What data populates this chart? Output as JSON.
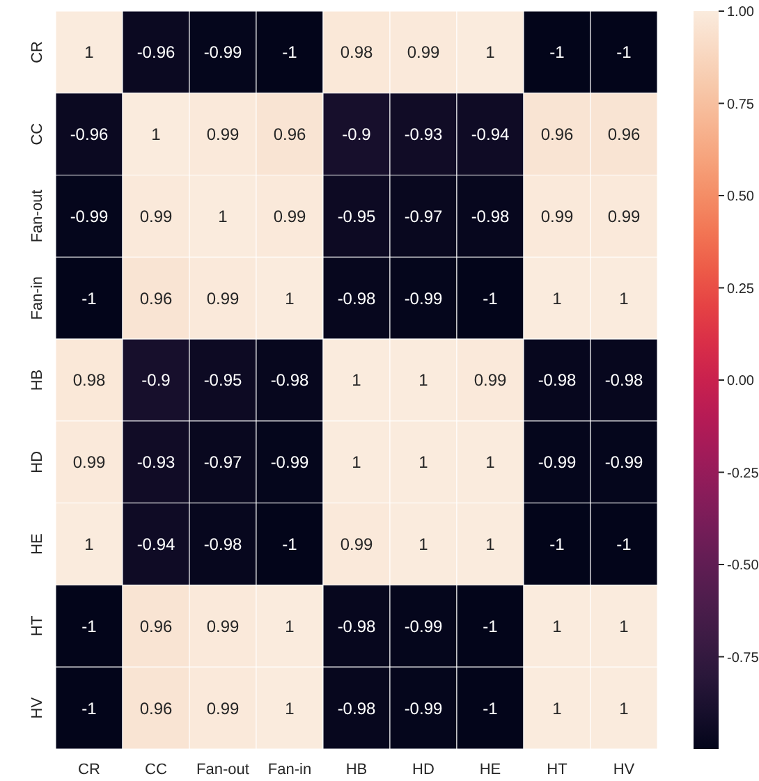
{
  "chart_data": {
    "type": "heatmap",
    "categories": [
      "CR",
      "CC",
      "Fan-out",
      "Fan-in",
      "HB",
      "HD",
      "HE",
      "HT",
      "HV"
    ],
    "y_categories": [
      "CR",
      "CC",
      "Fan-out",
      "Fan-in",
      "HB",
      "HD",
      "HE",
      "HT",
      "HV"
    ],
    "cells": [
      [
        1,
        -0.96,
        -0.99,
        -1,
        0.98,
        0.99,
        1,
        -1,
        -1
      ],
      [
        -0.96,
        1,
        0.99,
        0.96,
        -0.9,
        -0.93,
        -0.94,
        0.96,
        0.96
      ],
      [
        -0.99,
        0.99,
        1,
        0.99,
        -0.95,
        -0.97,
        -0.98,
        0.99,
        0.99
      ],
      [
        -1,
        0.96,
        0.99,
        1,
        -0.98,
        -0.99,
        -1,
        1,
        1
      ],
      [
        0.98,
        -0.9,
        -0.95,
        -0.98,
        1,
        1,
        0.99,
        -0.98,
        -0.98
      ],
      [
        0.99,
        -0.93,
        -0.97,
        -0.99,
        1,
        1,
        1,
        -0.99,
        -0.99
      ],
      [
        1,
        -0.94,
        -0.98,
        -1,
        0.99,
        1,
        1,
        -1,
        -1
      ],
      [
        -1,
        0.96,
        0.99,
        1,
        -0.98,
        -0.99,
        -1,
        1,
        1
      ],
      [
        -1,
        0.96,
        0.99,
        1,
        -0.98,
        -0.99,
        -1,
        1,
        1
      ]
    ],
    "clim": [
      -1,
      1
    ],
    "cticks": [
      {
        "value": 1,
        "label": "1.00"
      },
      {
        "value": 0.75,
        "label": "0.75"
      },
      {
        "value": 0.5,
        "label": "0.50"
      },
      {
        "value": 0.25,
        "label": "0.25"
      },
      {
        "value": 0,
        "label": "0.00"
      },
      {
        "value": -0.25,
        "label": "-0.25"
      },
      {
        "value": -0.5,
        "label": "-0.50"
      },
      {
        "value": -0.75,
        "label": "-0.75"
      }
    ],
    "data_labels": true
  }
}
